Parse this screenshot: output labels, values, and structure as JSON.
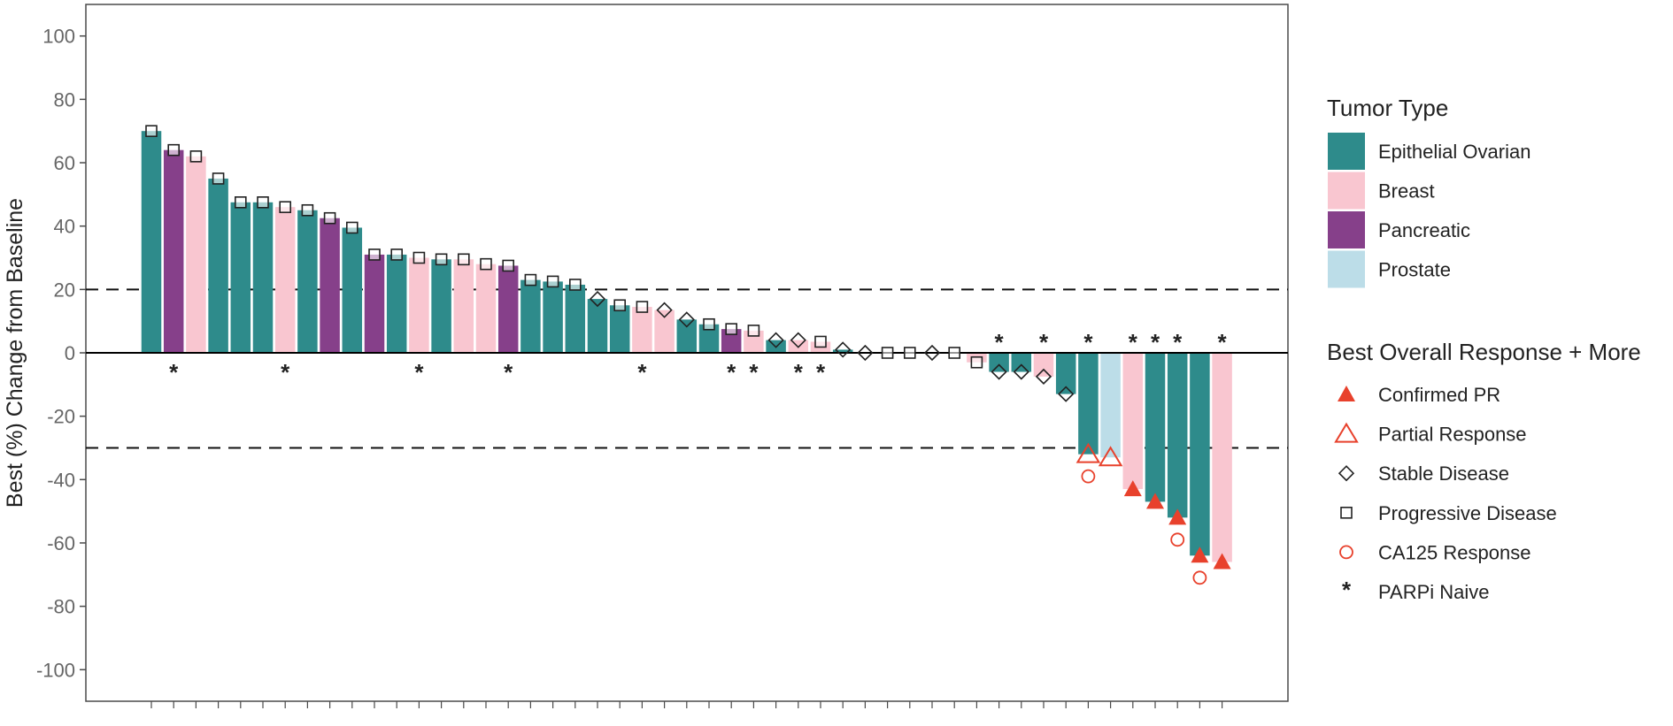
{
  "chart_data": {
    "type": "bar",
    "title": "",
    "ylabel": "Best (%) Change from Baseline",
    "xlabel": "",
    "ylim": [
      -110,
      110
    ],
    "yticks": [
      -100,
      -80,
      -60,
      -40,
      -20,
      0,
      20,
      40,
      60,
      80,
      100
    ],
    "reference_lines": [
      20,
      -30
    ],
    "grid": false,
    "legend_position": "right",
    "tumor_types": [
      {
        "key": "EOC",
        "label": "Epithelial Ovarian",
        "color": "#2e8b8b"
      },
      {
        "key": "BR",
        "label": "Breast",
        "color": "#f9c6d0"
      },
      {
        "key": "PA",
        "label": "Pancreatic",
        "color": "#86408a"
      },
      {
        "key": "PR",
        "label": "Prostate",
        "color": "#bcdde8"
      }
    ],
    "legend_tumor_title": "Tumor Type",
    "legend_response_title": "Best Overall Response + More",
    "response_types": [
      {
        "key": "CPR",
        "label": "Confirmed PR",
        "symbol": "triangle-filled",
        "color": "#e8412c"
      },
      {
        "key": "PRR",
        "label": "Partial Response",
        "symbol": "triangle-open",
        "color": "#e8412c"
      },
      {
        "key": "SD",
        "label": "Stable Disease",
        "symbol": "diamond-open",
        "color": "#222222"
      },
      {
        "key": "PD",
        "label": "Progressive Disease",
        "symbol": "square-open",
        "color": "#222222"
      },
      {
        "key": "CA",
        "label": "CA125 Response",
        "symbol": "circle-open",
        "color": "#e8412c"
      },
      {
        "key": "PN",
        "label": "PARPi Naive",
        "symbol": "asterisk",
        "color": "#222222"
      }
    ],
    "patients": [
      {
        "value": 70,
        "tumor": "EOC",
        "response": "PD",
        "parpi_naive": false,
        "ca125": false
      },
      {
        "value": 64,
        "tumor": "PA",
        "response": "PD",
        "parpi_naive": true,
        "ca125": false
      },
      {
        "value": 62,
        "tumor": "BR",
        "response": "PD",
        "parpi_naive": false,
        "ca125": false
      },
      {
        "value": 55,
        "tumor": "EOC",
        "response": "PD",
        "parpi_naive": false,
        "ca125": false
      },
      {
        "value": 47.5,
        "tumor": "EOC",
        "response": "PD",
        "parpi_naive": false,
        "ca125": false
      },
      {
        "value": 47.5,
        "tumor": "EOC",
        "response": "PD",
        "parpi_naive": false,
        "ca125": false
      },
      {
        "value": 46,
        "tumor": "BR",
        "response": "PD",
        "parpi_naive": true,
        "ca125": false
      },
      {
        "value": 45,
        "tumor": "EOC",
        "response": "PD",
        "parpi_naive": false,
        "ca125": false
      },
      {
        "value": 42.5,
        "tumor": "PA",
        "response": "PD",
        "parpi_naive": false,
        "ca125": false
      },
      {
        "value": 39.5,
        "tumor": "EOC",
        "response": "PD",
        "parpi_naive": false,
        "ca125": false
      },
      {
        "value": 31,
        "tumor": "PA",
        "response": "PD",
        "parpi_naive": false,
        "ca125": false
      },
      {
        "value": 31,
        "tumor": "EOC",
        "response": "PD",
        "parpi_naive": false,
        "ca125": false
      },
      {
        "value": 30,
        "tumor": "BR",
        "response": "PD",
        "parpi_naive": true,
        "ca125": false
      },
      {
        "value": 29.5,
        "tumor": "EOC",
        "response": "PD",
        "parpi_naive": false,
        "ca125": false
      },
      {
        "value": 29.5,
        "tumor": "BR",
        "response": "PD",
        "parpi_naive": false,
        "ca125": false
      },
      {
        "value": 28,
        "tumor": "BR",
        "response": "PD",
        "parpi_naive": false,
        "ca125": false
      },
      {
        "value": 27.5,
        "tumor": "PA",
        "response": "PD",
        "parpi_naive": true,
        "ca125": false
      },
      {
        "value": 23,
        "tumor": "EOC",
        "response": "PD",
        "parpi_naive": false,
        "ca125": false
      },
      {
        "value": 22.5,
        "tumor": "EOC",
        "response": "PD",
        "parpi_naive": false,
        "ca125": false
      },
      {
        "value": 21.5,
        "tumor": "EOC",
        "response": "PD",
        "parpi_naive": false,
        "ca125": false
      },
      {
        "value": 17,
        "tumor": "EOC",
        "response": "SD",
        "parpi_naive": false,
        "ca125": false
      },
      {
        "value": 15,
        "tumor": "EOC",
        "response": "PD",
        "parpi_naive": false,
        "ca125": false
      },
      {
        "value": 14.5,
        "tumor": "BR",
        "response": "PD",
        "parpi_naive": true,
        "ca125": false
      },
      {
        "value": 13.5,
        "tumor": "BR",
        "response": "SD",
        "parpi_naive": false,
        "ca125": false
      },
      {
        "value": 10.5,
        "tumor": "EOC",
        "response": "SD",
        "parpi_naive": false,
        "ca125": false
      },
      {
        "value": 9,
        "tumor": "EOC",
        "response": "PD",
        "parpi_naive": false,
        "ca125": false
      },
      {
        "value": 7.5,
        "tumor": "PA",
        "response": "PD",
        "parpi_naive": true,
        "ca125": false
      },
      {
        "value": 7,
        "tumor": "BR",
        "response": "PD",
        "parpi_naive": true,
        "ca125": false
      },
      {
        "value": 4,
        "tumor": "EOC",
        "response": "SD",
        "parpi_naive": false,
        "ca125": false
      },
      {
        "value": 4,
        "tumor": "BR",
        "response": "SD",
        "parpi_naive": true,
        "ca125": false
      },
      {
        "value": 3.5,
        "tumor": "BR",
        "response": "PD",
        "parpi_naive": true,
        "ca125": false
      },
      {
        "value": 1,
        "tumor": "EOC",
        "response": "SD",
        "parpi_naive": false,
        "ca125": false
      },
      {
        "value": 0,
        "tumor": "EOC",
        "response": "SD",
        "parpi_naive": false,
        "ca125": false
      },
      {
        "value": 0,
        "tumor": "EOC",
        "response": "PD",
        "parpi_naive": false,
        "ca125": false
      },
      {
        "value": 0,
        "tumor": "EOC",
        "response": "PD",
        "parpi_naive": false,
        "ca125": false
      },
      {
        "value": 0,
        "tumor": "EOC",
        "response": "SD",
        "parpi_naive": false,
        "ca125": false
      },
      {
        "value": 0,
        "tumor": "EOC",
        "response": "PD",
        "parpi_naive": false,
        "ca125": false
      },
      {
        "value": -3,
        "tumor": "BR",
        "response": "PD",
        "parpi_naive": false,
        "ca125": false
      },
      {
        "value": -6,
        "tumor": "EOC",
        "response": "SD",
        "parpi_naive": true,
        "ca125": false
      },
      {
        "value": -6,
        "tumor": "EOC",
        "response": "SD",
        "parpi_naive": false,
        "ca125": false
      },
      {
        "value": -7.5,
        "tumor": "BR",
        "response": "SD",
        "parpi_naive": true,
        "ca125": false
      },
      {
        "value": -13,
        "tumor": "EOC",
        "response": "SD",
        "parpi_naive": false,
        "ca125": false
      },
      {
        "value": -32,
        "tumor": "EOC",
        "response": "PRR",
        "parpi_naive": true,
        "ca125": true
      },
      {
        "value": -33,
        "tumor": "PR",
        "response": "PRR",
        "parpi_naive": false,
        "ca125": false
      },
      {
        "value": -43,
        "tumor": "BR",
        "response": "CPR",
        "parpi_naive": true,
        "ca125": false
      },
      {
        "value": -47,
        "tumor": "EOC",
        "response": "CPR",
        "parpi_naive": true,
        "ca125": false
      },
      {
        "value": -52,
        "tumor": "EOC",
        "response": "CPR",
        "parpi_naive": true,
        "ca125": true
      },
      {
        "value": -64,
        "tumor": "EOC",
        "response": "CPR",
        "parpi_naive": false,
        "ca125": true
      },
      {
        "value": -66,
        "tumor": "BR",
        "response": "CPR",
        "parpi_naive": true,
        "ca125": false
      }
    ]
  }
}
